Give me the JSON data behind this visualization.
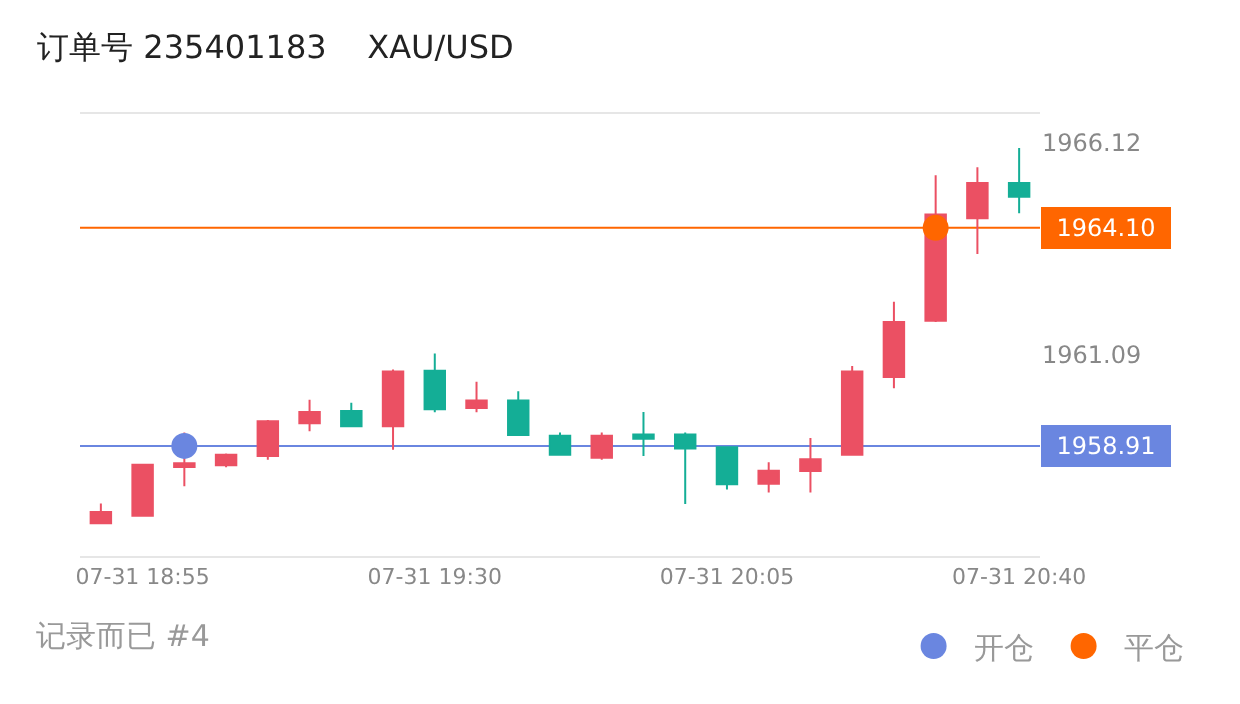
{
  "chart_data": {
    "type": "candlestick",
    "title": "订单号 235401183    XAU/USD",
    "categories": [
      null,
      "07-31 18:55",
      null,
      null,
      null,
      null,
      null,
      null,
      "07-31 19:30",
      null,
      null,
      null,
      null,
      null,
      null,
      "07-31 20:05",
      null,
      null,
      null,
      null,
      null,
      null,
      "07-31 20:40"
    ],
    "ohlc": [
      [
        1957.07,
        1957.54,
        1957.05,
        1957.34
      ],
      [
        1957.25,
        1958.46,
        1957.25,
        1958.46
      ],
      [
        1958.41,
        1959.23,
        1957.95,
        1958.5
      ],
      [
        1958.45,
        1958.73,
        1958.4,
        1958.7
      ],
      [
        1958.67,
        1959.53,
        1958.58,
        1959.5
      ],
      [
        1959.45,
        1960.01,
        1959.26,
        1959.72
      ],
      [
        1959.74,
        1959.94,
        1959.38,
        1959.38
      ],
      [
        1959.38,
        1960.73,
        1958.82,
        1960.68
      ],
      [
        1960.7,
        1961.11,
        1959.71,
        1959.78
      ],
      [
        1959.81,
        1960.44,
        1959.71,
        1959.99
      ],
      [
        1959.99,
        1960.21,
        1959.17,
        1959.17
      ],
      [
        1959.15,
        1959.23,
        1958.7,
        1958.7
      ],
      [
        1958.63,
        1959.23,
        1958.58,
        1959.15
      ],
      [
        1959.18,
        1959.72,
        1958.67,
        1959.08
      ],
      [
        1959.18,
        1959.23,
        1957.53,
        1958.85
      ],
      [
        1958.88,
        1958.88,
        1957.87,
        1958.0
      ],
      [
        1958.01,
        1958.52,
        1957.8,
        1958.32
      ],
      [
        1958.31,
        1959.1,
        1957.8,
        1958.59
      ],
      [
        1958.7,
        1960.81,
        1958.7,
        1960.68
      ],
      [
        1960.55,
        1962.34,
        1960.28,
        1961.86
      ],
      [
        1961.89,
        1965.35,
        1961.86,
        1964.42
      ],
      [
        1964.33,
        1965.54,
        1963.48,
        1965.17
      ],
      [
        1965.17,
        1966.0,
        1964.45,
        1964.84
      ]
    ],
    "colors": [
      "#eb5063",
      "#eb5063",
      "#eb5063",
      "#eb5063",
      "#eb5063",
      "#eb5063",
      "#14ae96",
      "#eb5063",
      "#14ae96",
      "#eb5063",
      "#14ae96",
      "#14ae96",
      "#eb5063",
      "#14ae96",
      "#14ae96",
      "#14ae96",
      "#eb5063",
      "#eb5063",
      "#eb5063",
      "#eb5063",
      "#eb5063",
      "#eb5063",
      "#14ae96"
    ],
    "series": [
      {
        "type": "scatter",
        "name": "开仓",
        "color": "#6a86e0",
        "values": [
          null,
          null,
          1958.91,
          null,
          null,
          null,
          null,
          null,
          null,
          null,
          null,
          null,
          null,
          null,
          null,
          null,
          null,
          null,
          null,
          null,
          null,
          null,
          null
        ]
      },
      {
        "type": "scatter",
        "name": "平仓",
        "color": "#ff6600",
        "values": [
          null,
          null,
          null,
          null,
          null,
          null,
          null,
          null,
          null,
          null,
          null,
          null,
          null,
          null,
          null,
          null,
          null,
          null,
          null,
          null,
          1964.1,
          null,
          null
        ]
      }
    ],
    "ylim": [
      1956.29,
      1966.81
    ],
    "yticks": [
      1966.12,
      1961.09
    ],
    "ref_lines": [
      {
        "axis": "y",
        "value": 1964.1,
        "label": "1964.10",
        "color": "#ff6600"
      },
      {
        "axis": "y",
        "value": 1958.91,
        "label": "1958.91",
        "color": "#6a86e0"
      }
    ],
    "annotations": [
      "记录而已 #4"
    ],
    "marker": "circle",
    "legend": "bottom right",
    "grid": false
  }
}
